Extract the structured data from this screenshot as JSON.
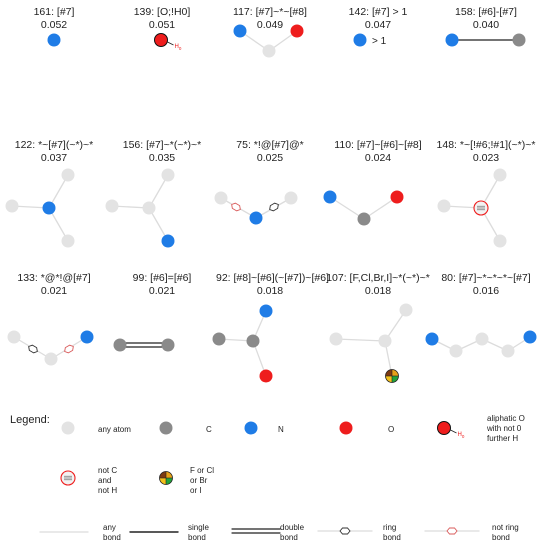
{
  "colors": {
    "any_atom": "#e3e3e3",
    "carbon": "#8a8a8a",
    "nitrogen": "#1f7ce6",
    "oxygen": "#ee1d1d",
    "any_bond": "#dcdcdc",
    "ring_marker": "#333333",
    "not_ring_marker": "#d95b5b",
    "halogen_colors": [
      "#e8a117",
      "#22a43a",
      "#f3c01a",
      "#7d3a12"
    ]
  },
  "fragments": [
    {
      "label": "161: [#7]",
      "value": "0.052"
    },
    {
      "label": "139: [O;!H0]",
      "value": "0.051",
      "h_label": "H",
      "h_sub": "0"
    },
    {
      "label": "117: [#7]~*~[#8]",
      "value": "0.049"
    },
    {
      "label": "142: [#7] > 1",
      "value": "0.047",
      "gt_text": "> 1"
    },
    {
      "label": "158: [#6]-[#7]",
      "value": "0.040"
    },
    {
      "label": "122: *~[#7](~*)~*",
      "value": "0.037"
    },
    {
      "label": "156: [#7]~*(~*)~*",
      "value": "0.035"
    },
    {
      "label": "75: *!@[#7]@*",
      "value": "0.025"
    },
    {
      "label": "110: [#7]~[#6]~[#8]",
      "value": "0.024"
    },
    {
      "label": "148: *~[!#6;!#1](~*)~*",
      "value": "0.023"
    },
    {
      "label": "133: *@*!@[#7]",
      "value": "0.021"
    },
    {
      "label": "99: [#6]=[#6]",
      "value": "0.021"
    },
    {
      "label": "92: [#8]~[#6](~[#7])~[#6]",
      "value": "0.018"
    },
    {
      "label": "107: [F,Cl,Br,I]~*(~*)~*",
      "value": "0.018"
    },
    {
      "label": "80: [#7]~*~*~*~[#7]",
      "value": "0.016"
    }
  ],
  "legend": {
    "title": "Legend:",
    "any_atom": "any atom",
    "c": "C",
    "n": "N",
    "o": "O",
    "aliphatic_o": [
      "aliphatic O",
      "with not 0",
      "further H"
    ],
    "aliphatic_h": "H",
    "aliphatic_h_sub": "0",
    "not_c": [
      "not C",
      "and",
      "not H"
    ],
    "halogen": [
      "F or Cl",
      "or Br",
      "or I"
    ],
    "any_bond": [
      "any",
      "bond"
    ],
    "single_bond": [
      "single",
      "bond"
    ],
    "double_bond": [
      "double",
      "bond"
    ],
    "ring_bond": [
      "ring",
      "bond"
    ],
    "not_ring_bond": [
      "not ring",
      "bond"
    ]
  }
}
